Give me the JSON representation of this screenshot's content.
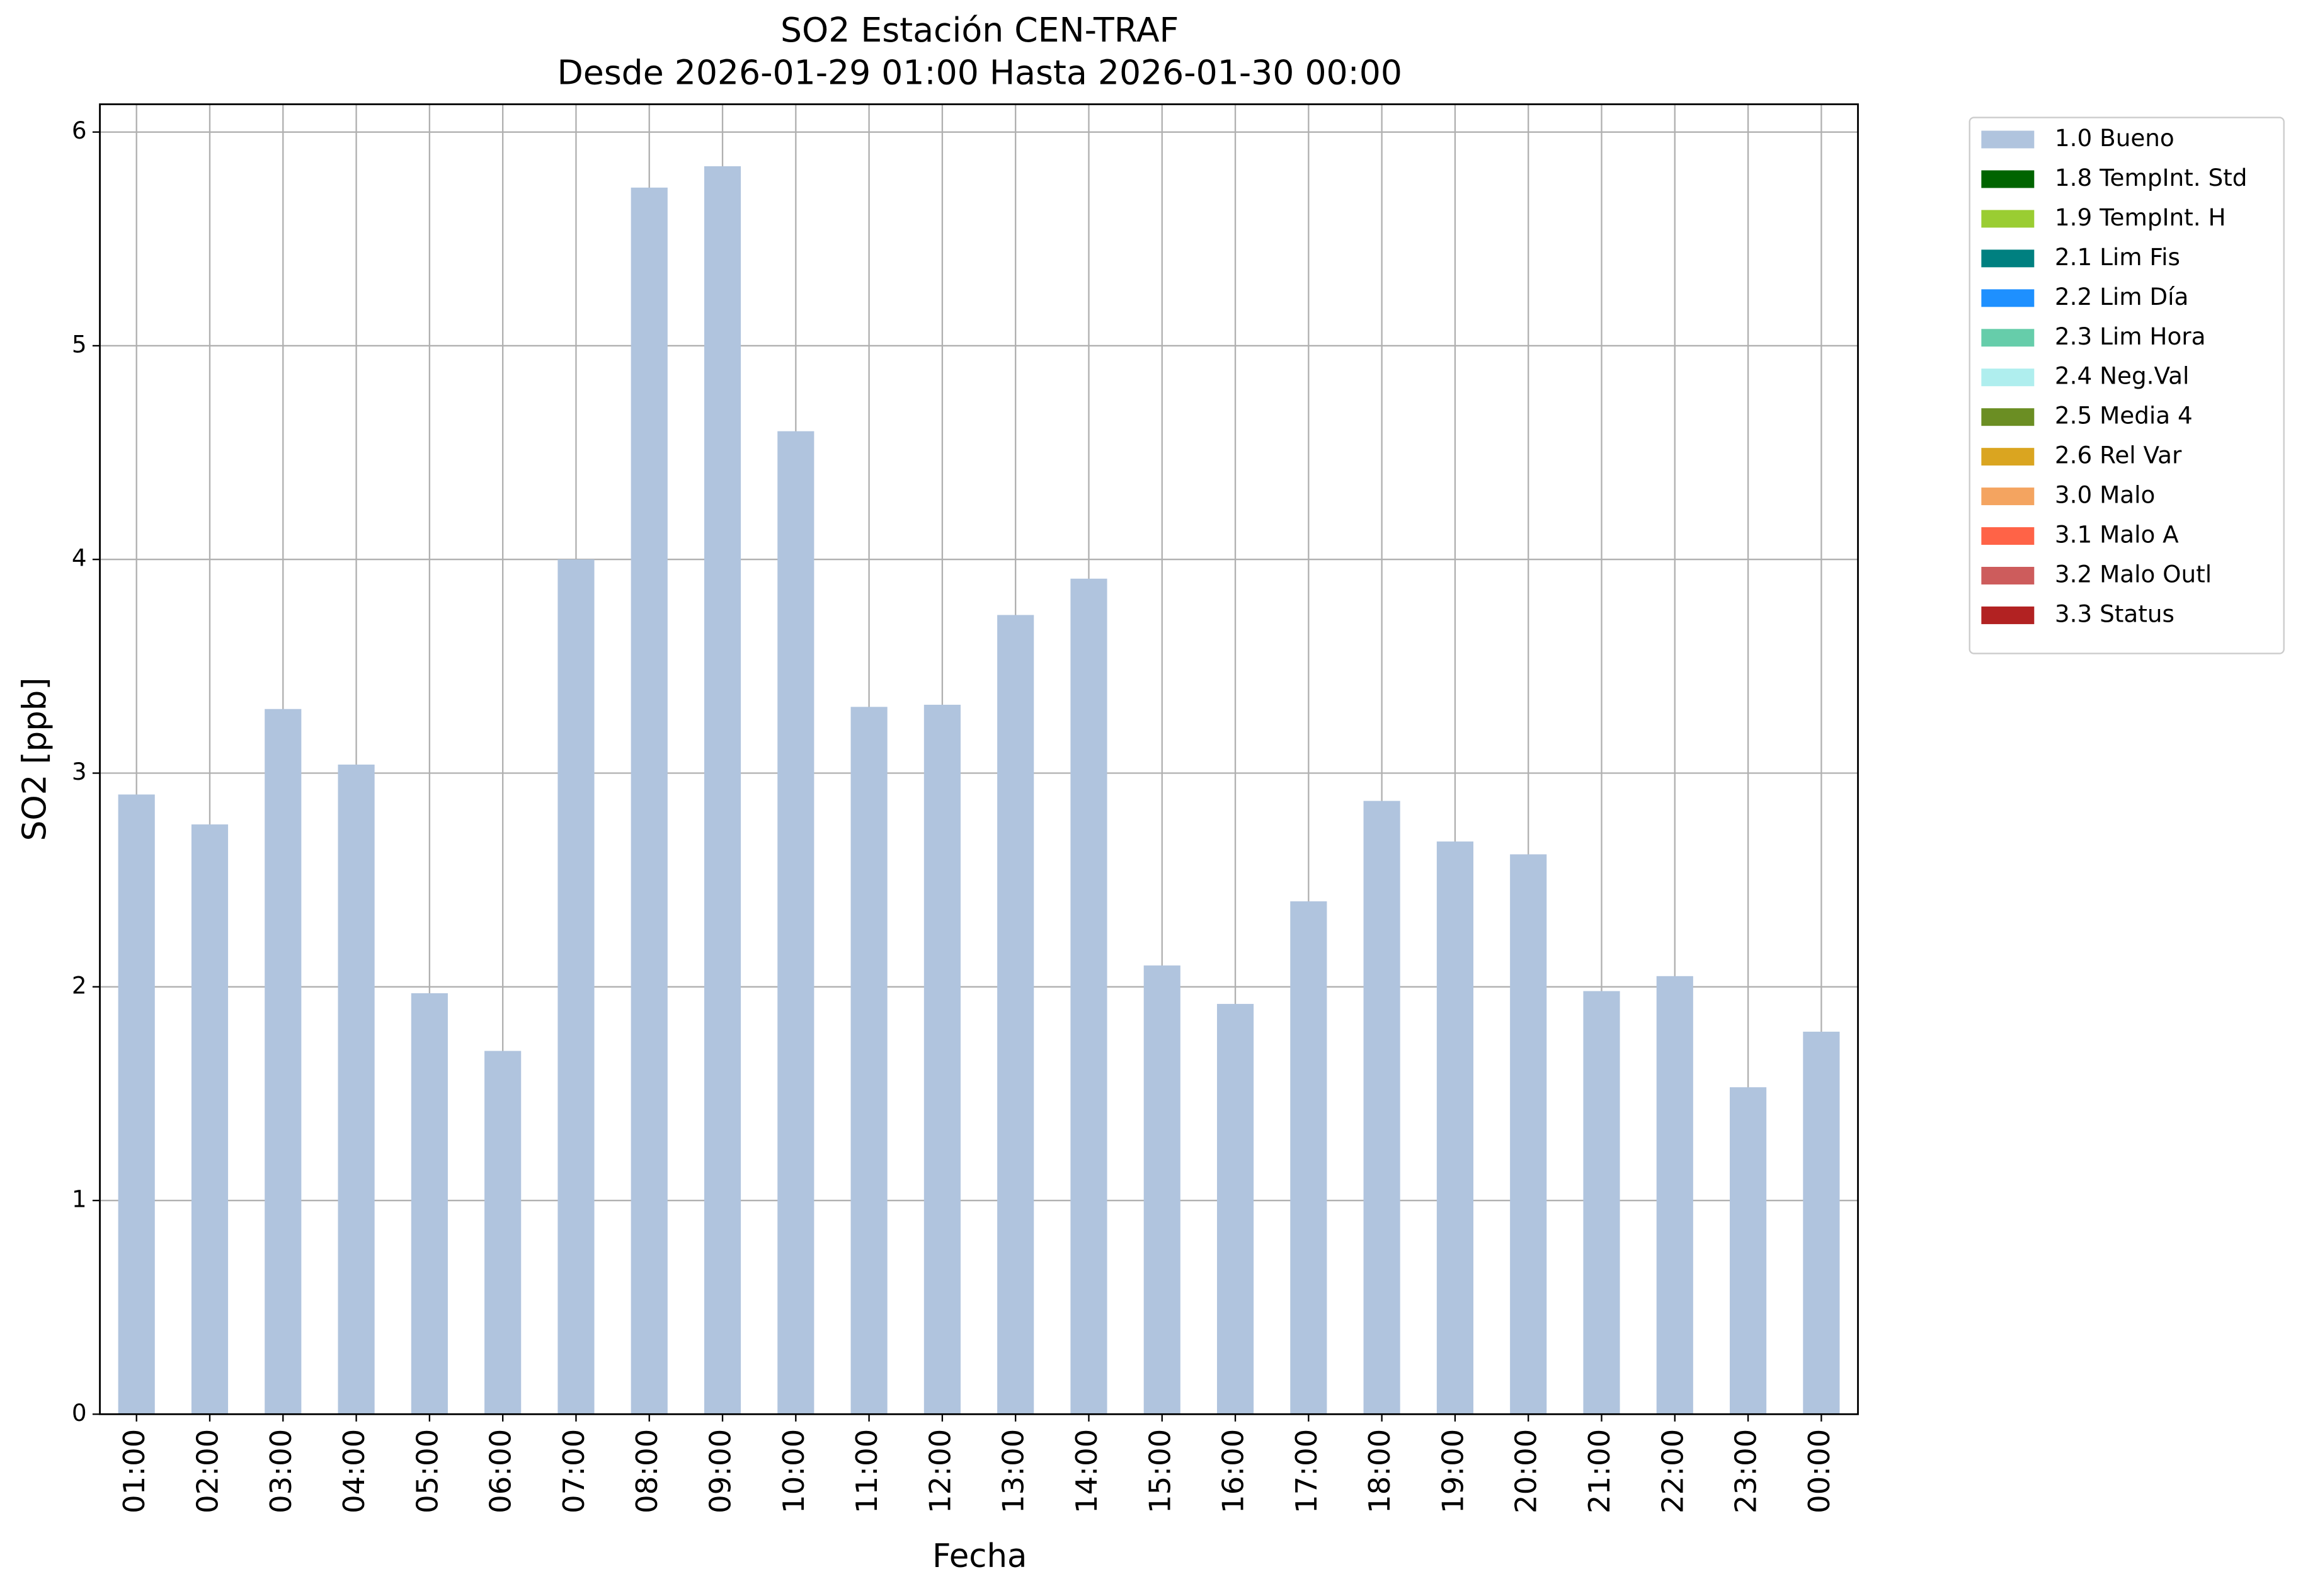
{
  "chart_data": {
    "type": "bar",
    "title": "SO2 Estación CEN-TRAF",
    "subtitle": "Desde 2026-01-29 01:00 Hasta 2026-01-30 00:00",
    "x_label": "Fecha",
    "y_label": "SO2 [ppb]",
    "categories": [
      "01:00",
      "02:00",
      "03:00",
      "04:00",
      "05:00",
      "06:00",
      "07:00",
      "08:00",
      "09:00",
      "10:00",
      "11:00",
      "12:00",
      "13:00",
      "14:00",
      "15:00",
      "16:00",
      "17:00",
      "18:00",
      "19:00",
      "20:00",
      "21:00",
      "22:00",
      "23:00",
      "00:00"
    ],
    "series": [
      {
        "name": "1.0 Bueno",
        "color": "#b0c4de",
        "values": [
          2.9,
          2.76,
          3.3,
          3.04,
          1.97,
          1.7,
          4.0,
          5.74,
          5.84,
          4.6,
          3.31,
          3.32,
          3.74,
          3.91,
          2.1,
          1.92,
          2.4,
          2.87,
          2.68,
          2.62,
          1.98,
          2.05,
          1.53,
          1.79
        ]
      },
      {
        "name": "1.8 TempInt. Std",
        "color": "#006400"
      },
      {
        "name": "1.9 TempInt. H",
        "color": "#9acd32"
      },
      {
        "name": "2.1 Lim Fis",
        "color": "#008080"
      },
      {
        "name": "2.2 Lim Día",
        "color": "#1e90ff"
      },
      {
        "name": "2.3 Lim Hora",
        "color": "#66cdaa"
      },
      {
        "name": "2.4 Neg.Val",
        "color": "#afeeee"
      },
      {
        "name": "2.5 Media 4",
        "color": "#6b8e23"
      },
      {
        "name": "2.6 Rel Var",
        "color": "#daa520"
      },
      {
        "name": "3.0 Malo",
        "color": "#f4a460"
      },
      {
        "name": "3.1 Malo A",
        "color": "#ff6347"
      },
      {
        "name": "3.2 Malo Outl",
        "color": "#cd5c5c"
      },
      {
        "name": "3.3 Status",
        "color": "#b22222"
      }
    ],
    "ylim": [
      0,
      6.13
    ],
    "yticks": [
      0,
      1,
      2,
      3,
      4,
      5,
      6
    ],
    "grid": true,
    "legend": "outside-right"
  }
}
